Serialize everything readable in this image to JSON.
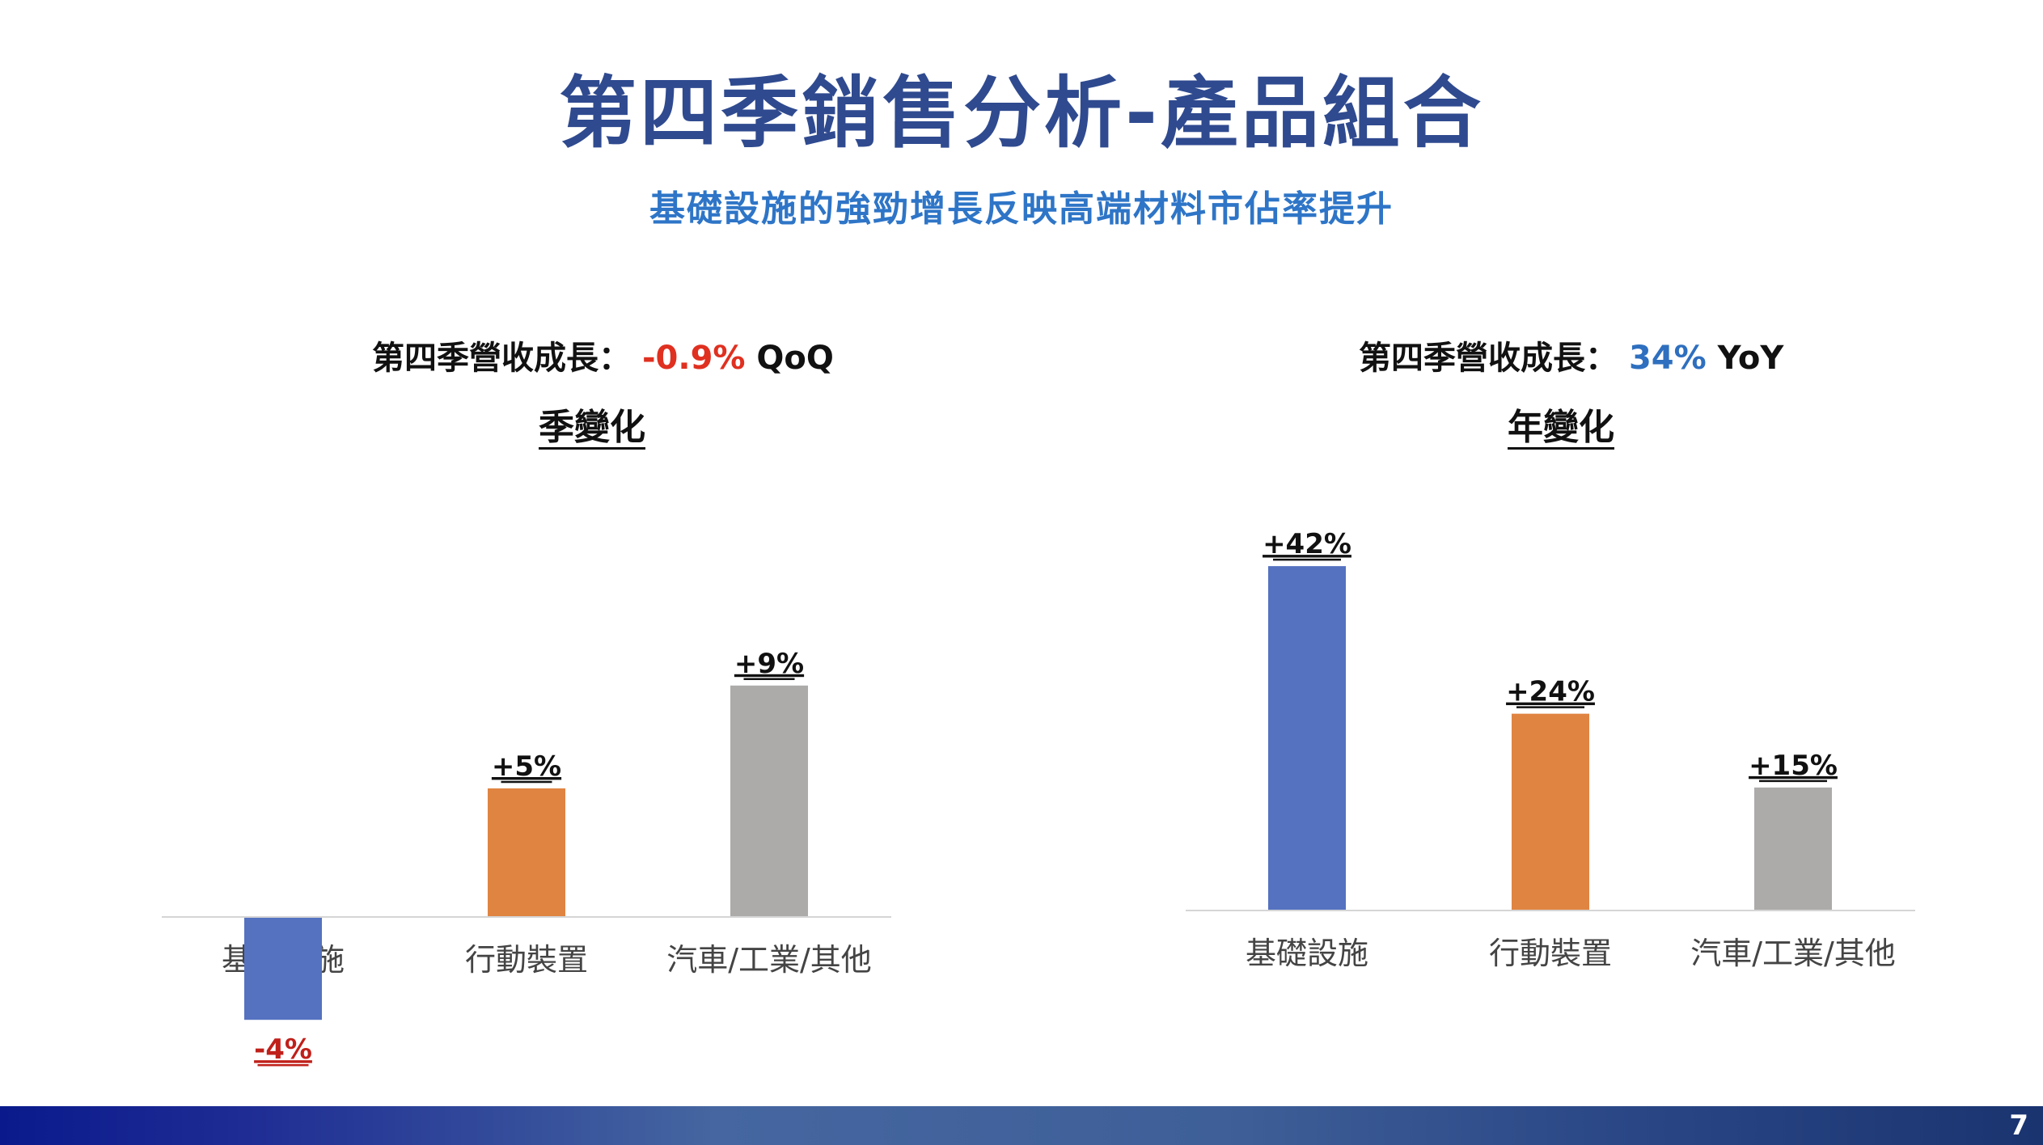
{
  "slide": {
    "title": "第四季銷售分析-產品組合",
    "subtitle": "基礎設施的強勁增長反映高端材料市佔率提升",
    "page_number": "7"
  },
  "left": {
    "growth_prefix": "第四季營收成長：",
    "growth_value": "-0.9%",
    "growth_unit": "QoQ",
    "change_label": "季變化"
  },
  "right": {
    "growth_prefix": "第四季營收成長：",
    "growth_value": "34%",
    "growth_unit": "YoY",
    "change_label": "年變化"
  },
  "chart_data": [
    {
      "type": "bar",
      "title": "季變化",
      "categories": [
        "基礎設施",
        "行動裝置",
        "汽車/工業/其他"
      ],
      "values": [
        -4,
        5,
        9
      ],
      "data_labels": [
        "-4%",
        "+5%",
        "+9%"
      ],
      "colors": [
        "#5572C0",
        "#E08442",
        "#ADABAA"
      ],
      "negative_label_color": "#C0201A",
      "ylim": [
        -4.5,
        10
      ],
      "grid": false
    },
    {
      "type": "bar",
      "title": "年變化",
      "categories": [
        "基礎設施",
        "行動裝置",
        "汽車/工業/其他"
      ],
      "values": [
        42,
        24,
        15
      ],
      "data_labels": [
        "+42%",
        "+24%",
        "+15%"
      ],
      "colors": [
        "#5572C0",
        "#E08442",
        "#ADABAA"
      ],
      "ylim": [
        0,
        45
      ],
      "grid": false
    }
  ]
}
